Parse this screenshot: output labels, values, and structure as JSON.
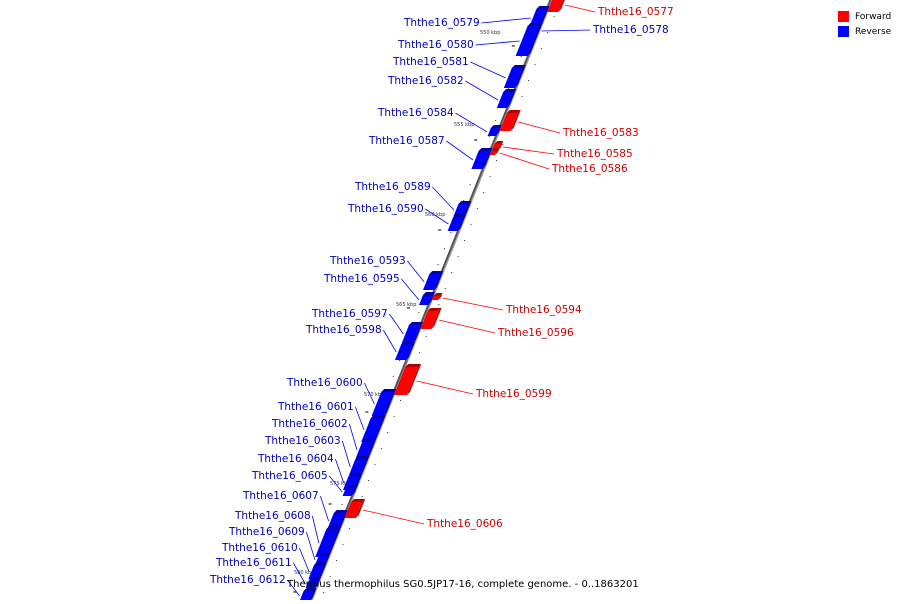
{
  "caption": "Thermus thermophilus SG0.5JP17-16, complete genome. - 0..1863201",
  "legend": [
    {
      "label": "Forward",
      "color": "#ff0000"
    },
    {
      "label": "Reverse",
      "color": "#0000ff"
    }
  ],
  "colors": {
    "forward": "#ff0000",
    "forward_side": "#b30000",
    "reverse": "#0000ff",
    "reverse_side": "#0000a6",
    "axis": "#777777"
  },
  "kbp_ticks": [
    "550 kbp",
    "555 kbp",
    "560 kbp",
    "565 kbp",
    "570 kbp",
    "575 kbp",
    "580 kbp"
  ],
  "genes": [
    {
      "id": "Ththe16_0577",
      "strand": "forward"
    },
    {
      "id": "Ththe16_0578",
      "strand": "reverse"
    },
    {
      "id": "Ththe16_0579",
      "strand": "reverse"
    },
    {
      "id": "Ththe16_0580",
      "strand": "reverse"
    },
    {
      "id": "Ththe16_0581",
      "strand": "reverse"
    },
    {
      "id": "Ththe16_0582",
      "strand": "reverse"
    },
    {
      "id": "Ththe16_0583",
      "strand": "forward"
    },
    {
      "id": "Ththe16_0584",
      "strand": "reverse"
    },
    {
      "id": "Ththe16_0585",
      "strand": "forward"
    },
    {
      "id": "Ththe16_0586",
      "strand": "forward"
    },
    {
      "id": "Ththe16_0587",
      "strand": "reverse"
    },
    {
      "id": "Ththe16_0589",
      "strand": "reverse"
    },
    {
      "id": "Ththe16_0590",
      "strand": "reverse"
    },
    {
      "id": "Ththe16_0593",
      "strand": "reverse"
    },
    {
      "id": "Ththe16_0594",
      "strand": "forward"
    },
    {
      "id": "Ththe16_0595",
      "strand": "reverse"
    },
    {
      "id": "Ththe16_0596",
      "strand": "forward"
    },
    {
      "id": "Ththe16_0597",
      "strand": "reverse"
    },
    {
      "id": "Ththe16_0598",
      "strand": "reverse"
    },
    {
      "id": "Ththe16_0599",
      "strand": "forward"
    },
    {
      "id": "Ththe16_0600",
      "strand": "reverse"
    },
    {
      "id": "Ththe16_0601",
      "strand": "reverse"
    },
    {
      "id": "Ththe16_0602",
      "strand": "reverse"
    },
    {
      "id": "Ththe16_0603",
      "strand": "reverse"
    },
    {
      "id": "Ththe16_0604",
      "strand": "reverse"
    },
    {
      "id": "Ththe16_0605",
      "strand": "reverse"
    },
    {
      "id": "Ththe16_0606",
      "strand": "forward"
    },
    {
      "id": "Ththe16_0607",
      "strand": "reverse"
    },
    {
      "id": "Ththe16_0608",
      "strand": "reverse"
    },
    {
      "id": "Ththe16_0609",
      "strand": "reverse"
    },
    {
      "id": "Ththe16_0610",
      "strand": "reverse"
    },
    {
      "id": "Ththe16_0611",
      "strand": "reverse"
    },
    {
      "id": "Ththe16_0612",
      "strand": "reverse"
    }
  ]
}
